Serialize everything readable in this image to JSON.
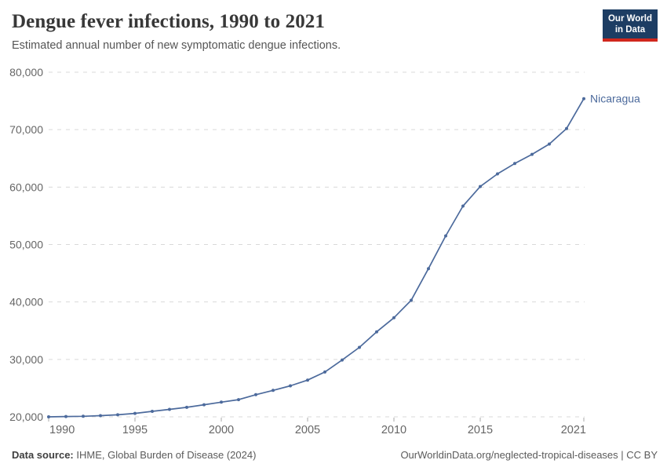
{
  "header": {
    "title": "Dengue fever infections, 1990 to 2021",
    "subtitle": "Estimated annual number of new symptomatic dengue infections.",
    "logo": {
      "line1": "Our World",
      "line2": "in Data"
    }
  },
  "footer": {
    "source_label": "Data source:",
    "source_text": " IHME, Global Burden of Disease (2024)",
    "link_text": "OurWorldinData.org/neglected-tropical-diseases | CC BY"
  },
  "colors": {
    "series_blue": "#4C6A9C",
    "grid": "#d9d9d9",
    "axis_text": "#666666",
    "tick_mark": "#a9a9a9",
    "logo_navy": "#1d3d63",
    "logo_red": "#d0271d"
  },
  "chart_data": {
    "type": "line",
    "title": "Dengue fever infections, 1990 to 2021",
    "subtitle": "Estimated annual number of new symptomatic dengue infections.",
    "xlabel": "",
    "ylabel": "",
    "xlim": [
      1990,
      2021
    ],
    "ylim": [
      20000,
      80000
    ],
    "grid": "horizontal-dashed",
    "legend": "end-of-line-label",
    "x_ticks": [
      1990,
      1995,
      2000,
      2005,
      2010,
      2015,
      2021
    ],
    "x_tick_labels": [
      "1990",
      "1995",
      "2000",
      "2005",
      "2010",
      "2015",
      "2021"
    ],
    "y_ticks": [
      20000,
      30000,
      40000,
      50000,
      60000,
      70000,
      80000
    ],
    "y_tick_labels": [
      "20,000",
      "30,000",
      "40,000",
      "50,000",
      "60,000",
      "70,000",
      "80,000"
    ],
    "series": [
      {
        "name": "Nicaragua",
        "color": "#4C6A9C",
        "x": [
          1990,
          1991,
          1992,
          1993,
          1994,
          1995,
          1996,
          1997,
          1998,
          1999,
          2000,
          2001,
          2002,
          2003,
          2004,
          2005,
          2006,
          2007,
          2008,
          2009,
          2010,
          2011,
          2012,
          2013,
          2014,
          2015,
          2016,
          2017,
          2018,
          2019,
          2020,
          2021
        ],
        "values": [
          20000,
          20050,
          20100,
          20200,
          20350,
          20600,
          20950,
          21300,
          21650,
          22100,
          22550,
          23000,
          23850,
          24600,
          25400,
          26400,
          27800,
          29900,
          32100,
          34800,
          37250,
          40300,
          45800,
          51500,
          56700,
          60100,
          62300,
          64100,
          65700,
          67500,
          70200,
          75400
        ]
      }
    ]
  }
}
